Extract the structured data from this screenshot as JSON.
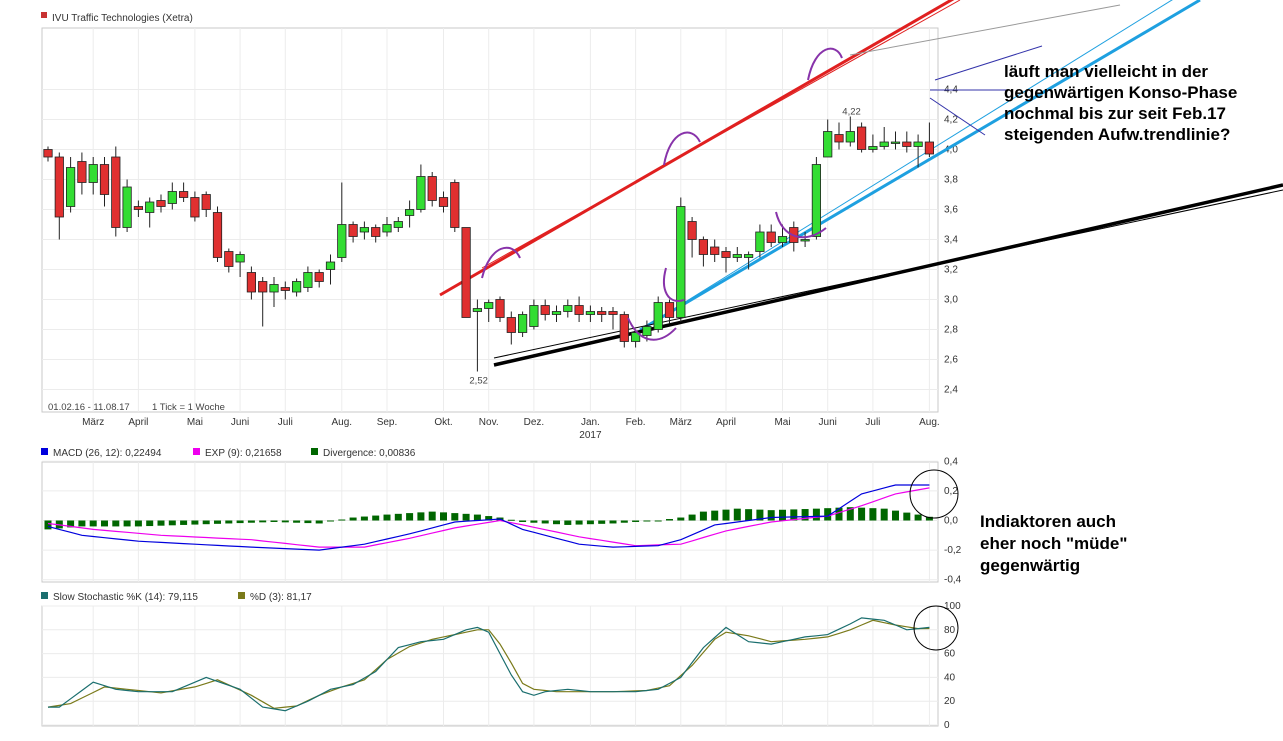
{
  "chart_data": [
    {
      "type": "candlestick",
      "title": "IVU Traffic Technologies (Xetra)",
      "date_range": "01.02.16 - 11.08.17",
      "interval": "1 Tick = 1 Woche",
      "ylim": [
        2.3,
        4.5
      ],
      "y_ticks": [
        2.4,
        2.6,
        2.8,
        3.0,
        3.2,
        3.4,
        3.6,
        3.8,
        4.0,
        4.2,
        4.4
      ],
      "y_tick_labels": [
        "2,4",
        "2,6",
        "2,8",
        "3,0",
        "3,2",
        "3,4",
        "3,6",
        "3,8",
        "4,0",
        "4,2",
        "4,4"
      ],
      "x_month_labels": [
        {
          "label": "März",
          "week": 4
        },
        {
          "label": "April",
          "week": 8
        },
        {
          "label": "Mai",
          "week": 13
        },
        {
          "label": "Juni",
          "week": 17
        },
        {
          "label": "Juli",
          "week": 21
        },
        {
          "label": "Aug.",
          "week": 26
        },
        {
          "label": "Sep.",
          "week": 30
        },
        {
          "label": "Okt.",
          "week": 35
        },
        {
          "label": "Nov.",
          "week": 39
        },
        {
          "label": "Dez.",
          "week": 43
        },
        {
          "label": "Jan.",
          "week": 48
        },
        {
          "label": "Feb.",
          "week": 52
        },
        {
          "label": "März",
          "week": 56
        },
        {
          "label": "April",
          "week": 60
        },
        {
          "label": "Mai",
          "week": 65
        },
        {
          "label": "Juni",
          "week": 69
        },
        {
          "label": "Juli",
          "week": 73
        },
        {
          "label": "Aug.",
          "week": 78
        }
      ],
      "year_label": {
        "label": "2017",
        "week": 48
      },
      "low_annotation": "2,52",
      "high_annotation": "4,22",
      "candles": [
        [
          4.0,
          3.95,
          4.02,
          3.92
        ],
        [
          3.95,
          3.55,
          3.98,
          3.4
        ],
        [
          3.62,
          3.88,
          3.95,
          3.58
        ],
        [
          3.92,
          3.78,
          3.98,
          3.7
        ],
        [
          3.78,
          3.9,
          3.95,
          3.7
        ],
        [
          3.9,
          3.7,
          3.95,
          3.62
        ],
        [
          3.95,
          3.48,
          4.02,
          3.42
        ],
        [
          3.48,
          3.75,
          3.8,
          3.45
        ],
        [
          3.62,
          3.6,
          3.66,
          3.55
        ],
        [
          3.58,
          3.65,
          3.68,
          3.48
        ],
        [
          3.66,
          3.62,
          3.7,
          3.58
        ],
        [
          3.64,
          3.72,
          3.78,
          3.6
        ],
        [
          3.72,
          3.68,
          3.78,
          3.65
        ],
        [
          3.68,
          3.55,
          3.72,
          3.52
        ],
        [
          3.7,
          3.6,
          3.72,
          3.55
        ],
        [
          3.58,
          3.28,
          3.62,
          3.25
        ],
        [
          3.32,
          3.22,
          3.34,
          3.18
        ],
        [
          3.25,
          3.3,
          3.32,
          3.15
        ],
        [
          3.18,
          3.05,
          3.22,
          3.0
        ],
        [
          3.12,
          3.05,
          3.15,
          2.82
        ],
        [
          3.05,
          3.1,
          3.15,
          2.95
        ],
        [
          3.08,
          3.06,
          3.12,
          3.0
        ],
        [
          3.05,
          3.12,
          3.14,
          3.02
        ],
        [
          3.08,
          3.18,
          3.22,
          3.05
        ],
        [
          3.18,
          3.12,
          3.2,
          3.08
        ],
        [
          3.2,
          3.25,
          3.3,
          3.1
        ],
        [
          3.28,
          3.5,
          3.78,
          3.25
        ],
        [
          3.5,
          3.42,
          3.52,
          3.38
        ],
        [
          3.45,
          3.48,
          3.52,
          3.4
        ],
        [
          3.48,
          3.42,
          3.5,
          3.38
        ],
        [
          3.45,
          3.5,
          3.55,
          3.42
        ],
        [
          3.48,
          3.52,
          3.55,
          3.45
        ],
        [
          3.56,
          3.6,
          3.66,
          3.48
        ],
        [
          3.6,
          3.82,
          3.9,
          3.58
        ],
        [
          3.82,
          3.66,
          3.85,
          3.62
        ],
        [
          3.68,
          3.62,
          3.72,
          3.58
        ],
        [
          3.78,
          3.48,
          3.8,
          3.45
        ],
        [
          3.48,
          2.88,
          3.4,
          2.88
        ],
        [
          2.92,
          2.94,
          3.0,
          2.52
        ],
        [
          2.94,
          2.98,
          3.0,
          2.85
        ],
        [
          3.0,
          2.88,
          3.02,
          2.85
        ],
        [
          2.88,
          2.78,
          2.92,
          2.7
        ],
        [
          2.78,
          2.9,
          2.92,
          2.75
        ],
        [
          2.82,
          2.96,
          3.0,
          2.8
        ],
        [
          2.96,
          2.9,
          3.0,
          2.86
        ],
        [
          2.9,
          2.92,
          2.96,
          2.85
        ],
        [
          2.92,
          2.96,
          3.0,
          2.88
        ],
        [
          2.96,
          2.9,
          3.02,
          2.85
        ],
        [
          2.9,
          2.92,
          2.96,
          2.85
        ],
        [
          2.92,
          2.9,
          2.95,
          2.85
        ],
        [
          2.92,
          2.9,
          2.95,
          2.8
        ],
        [
          2.9,
          2.72,
          2.92,
          2.68
        ],
        [
          2.72,
          2.78,
          2.8,
          2.68
        ],
        [
          2.76,
          2.82,
          2.86,
          2.72
        ],
        [
          2.8,
          2.98,
          3.02,
          2.78
        ],
        [
          2.98,
          2.88,
          3.0,
          2.84
        ],
        [
          2.88,
          3.62,
          3.68,
          2.85
        ],
        [
          3.52,
          3.4,
          3.55,
          3.28
        ],
        [
          3.4,
          3.3,
          3.42,
          3.22
        ],
        [
          3.35,
          3.3,
          3.4,
          3.25
        ],
        [
          3.32,
          3.28,
          3.35,
          3.18
        ],
        [
          3.28,
          3.3,
          3.35,
          3.25
        ],
        [
          3.28,
          3.3,
          3.32,
          3.2
        ],
        [
          3.32,
          3.45,
          3.5,
          3.28
        ],
        [
          3.45,
          3.38,
          3.5,
          3.35
        ],
        [
          3.38,
          3.42,
          3.5,
          3.35
        ],
        [
          3.48,
          3.38,
          3.52,
          3.32
        ],
        [
          3.4,
          3.4,
          3.45,
          3.35
        ],
        [
          3.42,
          3.9,
          3.95,
          3.4
        ],
        [
          3.95,
          4.12,
          4.2,
          3.95
        ],
        [
          4.1,
          4.05,
          4.18,
          4.0
        ],
        [
          4.05,
          4.12,
          4.22,
          4.02
        ],
        [
          4.15,
          4.0,
          4.18,
          3.98
        ],
        [
          4.0,
          4.02,
          4.1,
          3.98
        ],
        [
          4.02,
          4.05,
          4.15,
          4.0
        ],
        [
          4.05,
          4.05,
          4.12,
          4.0
        ],
        [
          4.05,
          4.02,
          4.12,
          3.98
        ],
        [
          4.02,
          4.05,
          4.1,
          3.88
        ],
        [
          4.05,
          3.97,
          4.18,
          3.95
        ]
      ]
    },
    {
      "type": "line",
      "legend": [
        {
          "name": "MACD (26, 12): 0,22494",
          "color": "#0000dd"
        },
        {
          "name": "EXP (9): 0,21658",
          "color": "#ee00ee"
        },
        {
          "name": "Divergence: 0,00836",
          "color": "#006600"
        }
      ],
      "ylim": [
        -0.42,
        0.42
      ],
      "y_tick_labels": [
        "0,4",
        "0,2",
        "0,0",
        "-0,2",
        "-0,4"
      ],
      "macd_anchors": [
        [
          0,
          -0.04
        ],
        [
          3,
          -0.1
        ],
        [
          8,
          -0.14
        ],
        [
          18,
          -0.18
        ],
        [
          24,
          -0.2
        ],
        [
          28,
          -0.16
        ],
        [
          32,
          -0.09
        ],
        [
          36,
          -0.01
        ],
        [
          40,
          0.01
        ],
        [
          42,
          -0.06
        ],
        [
          47,
          -0.16
        ],
        [
          50,
          -0.18
        ],
        [
          54,
          -0.17
        ],
        [
          56,
          -0.13
        ],
        [
          59,
          -0.03
        ],
        [
          64,
          0.02
        ],
        [
          69,
          0.03
        ],
        [
          72,
          0.18
        ],
        [
          75,
          0.24
        ],
        [
          78,
          0.24
        ],
        [
          79,
          0.225
        ]
      ],
      "exp_anchors": [
        [
          0,
          -0.02
        ],
        [
          4,
          -0.06
        ],
        [
          10,
          -0.1
        ],
        [
          18,
          -0.13
        ],
        [
          24,
          -0.18
        ],
        [
          28,
          -0.18
        ],
        [
          32,
          -0.12
        ],
        [
          36,
          -0.05
        ],
        [
          40,
          0.0
        ],
        [
          42,
          -0.03
        ],
        [
          47,
          -0.11
        ],
        [
          52,
          -0.17
        ],
        [
          56,
          -0.16
        ],
        [
          60,
          -0.07
        ],
        [
          64,
          -0.01
        ],
        [
          69,
          0.03
        ],
        [
          72,
          0.1
        ],
        [
          75,
          0.18
        ],
        [
          78,
          0.22
        ],
        [
          79,
          0.217
        ]
      ],
      "divergence_anchors": [
        [
          0,
          -0.06
        ],
        [
          3,
          -0.04
        ],
        [
          8,
          -0.04
        ],
        [
          12,
          -0.03
        ],
        [
          16,
          -0.02
        ],
        [
          20,
          -0.01
        ],
        [
          24,
          -0.02
        ],
        [
          27,
          0.02
        ],
        [
          30,
          0.04
        ],
        [
          34,
          0.06
        ],
        [
          38,
          0.04
        ],
        [
          40,
          0.02
        ],
        [
          42,
          -0.01
        ],
        [
          46,
          -0.03
        ],
        [
          50,
          -0.02
        ],
        [
          54,
          0.0
        ],
        [
          56,
          0.02
        ],
        [
          58,
          0.06
        ],
        [
          61,
          0.08
        ],
        [
          64,
          0.07
        ],
        [
          68,
          0.08
        ],
        [
          71,
          0.09
        ],
        [
          74,
          0.08
        ],
        [
          77,
          0.04
        ],
        [
          79,
          0.01
        ]
      ]
    },
    {
      "type": "line",
      "legend": [
        {
          "name": "Slow Stochastic %K (14): 79,115",
          "color": "#1a6e6e"
        },
        {
          "name": "%D (3): 81,17",
          "color": "#7a7a1a"
        }
      ],
      "ylim": [
        0,
        100
      ],
      "y_tick_labels": [
        "100",
        "80",
        "60",
        "40",
        "20",
        "0"
      ],
      "k_anchors": [
        [
          0,
          15
        ],
        [
          1,
          15
        ],
        [
          4,
          36
        ],
        [
          6,
          30
        ],
        [
          8,
          28
        ],
        [
          11,
          28
        ],
        [
          14,
          40
        ],
        [
          17,
          30
        ],
        [
          19,
          15
        ],
        [
          21,
          12
        ],
        [
          23,
          20
        ],
        [
          25,
          30
        ],
        [
          27,
          34
        ],
        [
          29,
          45
        ],
        [
          31,
          65
        ],
        [
          33,
          70
        ],
        [
          35,
          72
        ],
        [
          37,
          80
        ],
        [
          38,
          82
        ],
        [
          39,
          78
        ],
        [
          40,
          60
        ],
        [
          41,
          42
        ],
        [
          42,
          28
        ],
        [
          43,
          25
        ],
        [
          44,
          28
        ],
        [
          46,
          30
        ],
        [
          48,
          28
        ],
        [
          50,
          28
        ],
        [
          52,
          28
        ],
        [
          54,
          30
        ],
        [
          56,
          40
        ],
        [
          58,
          65
        ],
        [
          60,
          82
        ],
        [
          62,
          70
        ],
        [
          64,
          68
        ],
        [
          67,
          74
        ],
        [
          69,
          76
        ],
        [
          71,
          85
        ],
        [
          72,
          90
        ],
        [
          74,
          88
        ],
        [
          76,
          80
        ],
        [
          78,
          82
        ],
        [
          79,
          79.1
        ]
      ],
      "d_anchors": [
        [
          0,
          15
        ],
        [
          2,
          18
        ],
        [
          5,
          32
        ],
        [
          7,
          30
        ],
        [
          10,
          27
        ],
        [
          13,
          32
        ],
        [
          15,
          38
        ],
        [
          18,
          25
        ],
        [
          20,
          14
        ],
        [
          22,
          16
        ],
        [
          24,
          25
        ],
        [
          26,
          32
        ],
        [
          28,
          38
        ],
        [
          30,
          55
        ],
        [
          32,
          66
        ],
        [
          34,
          72
        ],
        [
          36,
          76
        ],
        [
          38,
          80
        ],
        [
          39,
          80
        ],
        [
          40,
          68
        ],
        [
          41,
          52
        ],
        [
          42,
          35
        ],
        [
          43,
          30
        ],
        [
          45,
          28
        ],
        [
          47,
          28
        ],
        [
          50,
          28
        ],
        [
          53,
          29
        ],
        [
          55,
          33
        ],
        [
          57,
          50
        ],
        [
          59,
          72
        ],
        [
          60,
          78
        ],
        [
          62,
          75
        ],
        [
          64,
          70
        ],
        [
          67,
          72
        ],
        [
          69,
          74
        ],
        [
          71,
          80
        ],
        [
          73,
          88
        ],
        [
          75,
          84
        ],
        [
          77,
          81
        ],
        [
          79,
          81.2
        ]
      ]
    }
  ],
  "annotations": {
    "note1_lines": [
      "läuft man vielleicht in der",
      "gegenwärtigen Konso-Phase",
      "nochmal bis zur seit Feb.17",
      "steigenden Aufw.trendlinie?"
    ],
    "note2_lines": [
      "Indiaktoren auch",
      "eher noch \"müde\"",
      "gegenwärtig"
    ]
  }
}
